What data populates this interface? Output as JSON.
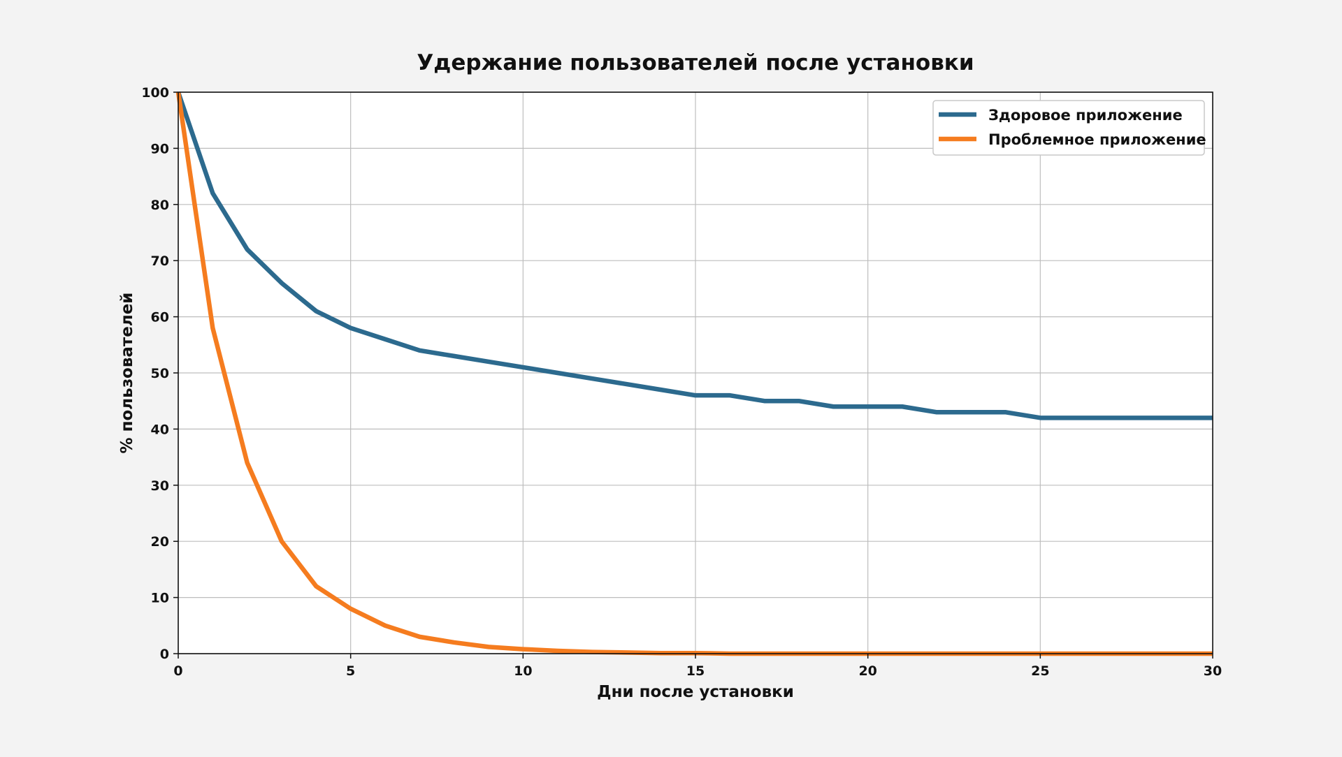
{
  "chart_data": {
    "type": "line",
    "title": "Удержание пользователей после установки",
    "xlabel": "Дни после установки",
    "ylabel": "% пользователей",
    "xlim": [
      0,
      30
    ],
    "ylim": [
      0,
      100
    ],
    "xticks": [
      0,
      5,
      10,
      15,
      20,
      25,
      30
    ],
    "yticks": [
      0,
      10,
      20,
      30,
      40,
      50,
      60,
      70,
      80,
      90,
      100
    ],
    "grid": true,
    "legend": "top-right",
    "x": [
      0,
      1,
      2,
      3,
      4,
      5,
      6,
      7,
      8,
      9,
      10,
      11,
      12,
      13,
      14,
      15,
      16,
      17,
      18,
      19,
      20,
      21,
      22,
      23,
      24,
      25,
      26,
      27,
      28,
      29,
      30
    ],
    "series": [
      {
        "name": "Здоровое приложение",
        "color": "#2c6a8e",
        "values": [
          100,
          82,
          72,
          66,
          61,
          58,
          56,
          54,
          53,
          52,
          51,
          50,
          49,
          48,
          47,
          46,
          46,
          45,
          45,
          44,
          44,
          44,
          43,
          43,
          43,
          42,
          42,
          42,
          42,
          42,
          42
        ]
      },
      {
        "name": "Проблемное приложение",
        "color": "#f57c1f",
        "values": [
          100,
          58,
          34,
          20,
          12,
          8,
          5,
          3,
          2,
          1.2,
          0.8,
          0.5,
          0.3,
          0.2,
          0.1,
          0.1,
          0,
          0,
          0,
          0,
          0,
          0,
          0,
          0,
          0,
          0,
          0,
          0,
          0,
          0,
          0
        ]
      }
    ]
  }
}
